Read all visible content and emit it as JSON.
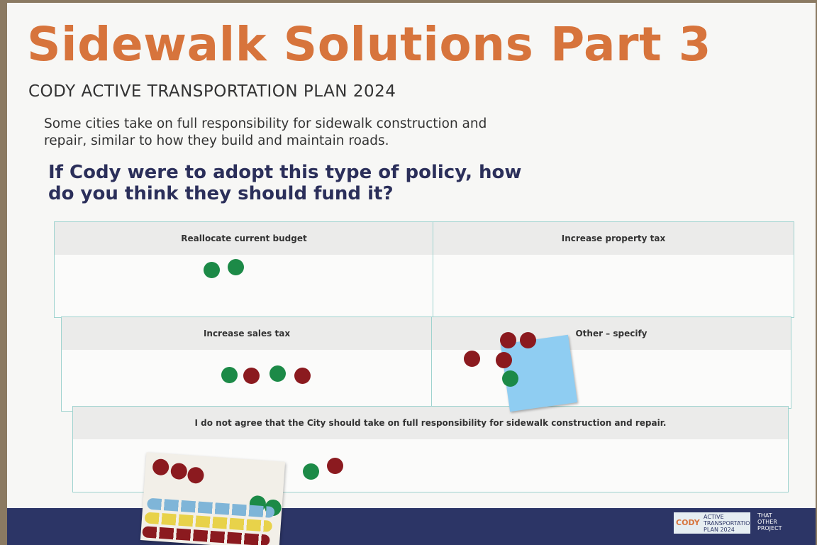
{
  "header": {
    "title": "Sidewalk Solutions Part 3",
    "subtitle": "CODY ACTIVE TRANSPORTATION PLAN 2024"
  },
  "intro": [
    "Some cities take on full responsibility for sidewalk construction and",
    "repair, similar to how they build and maintain roads."
  ],
  "question": [
    "If Cody were to adopt this type of policy, how",
    "do you think they should fund it?"
  ],
  "options": [
    "Reallocate current budget",
    "Increase property tax",
    "Increase sales tax",
    "Other – specify",
    "I do not agree that the City should take on full responsibility for sidewalk construction and repair."
  ],
  "footer": {
    "logo": "CODY",
    "logo_text": [
      "ACTIVE",
      "TRANSPORTATION",
      "PLAN 2024"
    ],
    "partner": [
      "THAT",
      "OTHER",
      "PROJECT"
    ]
  }
}
